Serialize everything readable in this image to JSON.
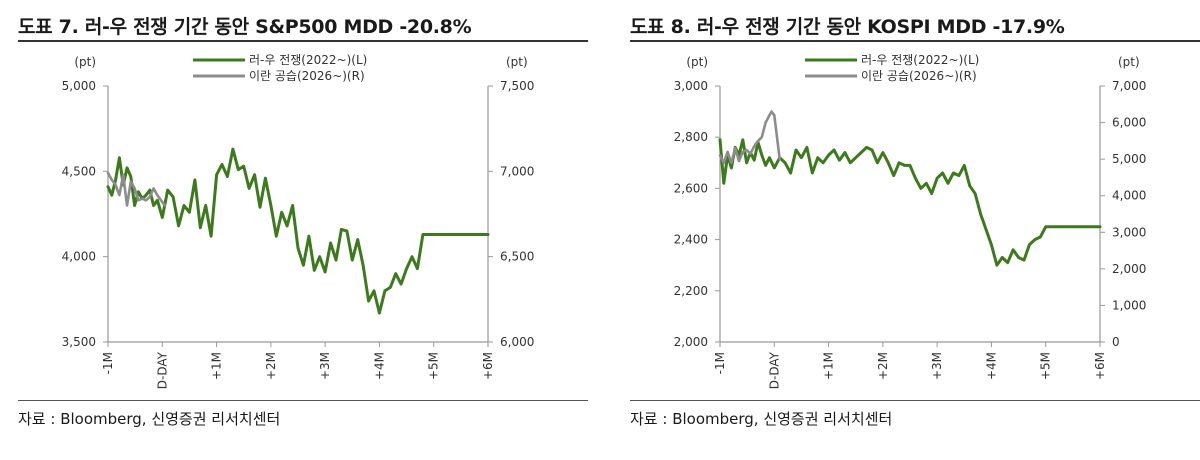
{
  "charts": [
    {
      "title": "도표 7. 러-우 전쟁 기간 동안 S&P500 MDD -20.8%",
      "source": "자료 : Bloomberg, 신영증권 리서치센터",
      "chart_data": {
        "type": "line",
        "title": "도표 7. 러-우 전쟁 기간 동안 S&P500 MDD -20.8%",
        "x_ticks": [
          "-1M",
          "D-DAY",
          "+1M",
          "+2M",
          "+3M",
          "+4M",
          "+5M",
          "+6M"
        ],
        "left_axis": {
          "unit": "(pt)",
          "ylim": [
            3500,
            5000
          ],
          "ticks": [
            3500,
            4000,
            4500,
            5000
          ],
          "tick_labels": [
            "3,500",
            "4,000",
            "4,500",
            "5,000"
          ]
        },
        "right_axis": {
          "unit": "(pt)",
          "ylim": [
            6000,
            7500
          ],
          "ticks": [
            6000,
            6500,
            7000,
            7500
          ],
          "tick_labels": [
            "6,000",
            "6,500",
            "7,000",
            "7,500"
          ]
        },
        "legend_position": "top-center",
        "series": [
          {
            "name": "러-우 전쟁(2022~)(L)",
            "axis": "left",
            "color": "#3d7a1e",
            "x": [
              -1.0,
              -0.93,
              -0.86,
              -0.79,
              -0.72,
              -0.65,
              -0.58,
              -0.51,
              -0.44,
              -0.37,
              -0.3,
              -0.23,
              -0.16,
              -0.09,
              0.0,
              0.1,
              0.2,
              0.3,
              0.4,
              0.5,
              0.6,
              0.7,
              0.8,
              0.9,
              1.0,
              1.1,
              1.2,
              1.3,
              1.4,
              1.5,
              1.6,
              1.7,
              1.8,
              1.9,
              2.0,
              2.1,
              2.2,
              2.3,
              2.4,
              2.5,
              2.6,
              2.7,
              2.8,
              2.9,
              3.0,
              3.1,
              3.2,
              3.3,
              3.4,
              3.5,
              3.6,
              3.7,
              3.8,
              3.9,
              4.0,
              4.1,
              4.2,
              4.3,
              4.4,
              4.5,
              4.6,
              4.7,
              4.8,
              4.9,
              5.0,
              5.1,
              5.2,
              5.3,
              5.4,
              5.5,
              5.6,
              5.7,
              5.8,
              5.9,
              6.0
            ],
            "values": [
              4410,
              4360,
              4450,
              4580,
              4420,
              4520,
              4470,
              4300,
              4380,
              4340,
              4360,
              4390,
              4300,
              4330,
              4230,
              4390,
              4350,
              4180,
              4300,
              4260,
              4450,
              4170,
              4300,
              4120,
              4480,
              4540,
              4470,
              4630,
              4510,
              4530,
              4400,
              4480,
              4290,
              4460,
              4300,
              4120,
              4260,
              4180,
              4300,
              4050,
              3950,
              4120,
              3920,
              4000,
              3910,
              4080,
              3980,
              4160,
              4150,
              3980,
              4100,
              3950,
              3740,
              3800,
              3670,
              3800,
              3820,
              3900,
              3840,
              3930,
              4000,
              3930,
              4130,
              4130,
              4130,
              4130,
              4130,
              4130,
              4130,
              4130,
              4130,
              4130,
              4130,
              4130,
              4130
            ]
          },
          {
            "name": "이란 공습(2026~)(R)",
            "axis": "right",
            "color": "#8c8c8c",
            "x": [
              -1.0,
              -0.93,
              -0.86,
              -0.79,
              -0.72,
              -0.65,
              -0.58,
              -0.51,
              -0.44,
              -0.37,
              -0.3,
              -0.23,
              -0.16,
              -0.09,
              0.0,
              0.05
            ],
            "values": [
              6990,
              6950,
              6920,
              6860,
              6980,
              6800,
              6940,
              6900,
              6830,
              6840,
              6830,
              6850,
              6900,
              6860,
              6820,
              6800
            ]
          }
        ]
      }
    },
    {
      "title": "도표 8. 러-우 전쟁 기간 동안 KOSPI MDD -17.9%",
      "source": "자료 : Bloomberg, 신영증권 리서치센터",
      "chart_data": {
        "type": "line",
        "title": "도표 8. 러-우 전쟁 기간 동안 KOSPI MDD -17.9%",
        "x_ticks": [
          "-1M",
          "D-DAY",
          "+1M",
          "+2M",
          "+3M",
          "+4M",
          "+5M",
          "+6M"
        ],
        "left_axis": {
          "unit": "(pt)",
          "ylim": [
            2000,
            3000
          ],
          "ticks": [
            2000,
            2200,
            2400,
            2600,
            2800,
            3000
          ],
          "tick_labels": [
            "2,000",
            "2,200",
            "2,400",
            "2,600",
            "2,800",
            "3,000"
          ]
        },
        "right_axis": {
          "unit": "(pt)",
          "ylim": [
            0,
            7000
          ],
          "ticks": [
            0,
            1000,
            2000,
            3000,
            4000,
            5000,
            6000,
            7000
          ],
          "tick_labels": [
            "0",
            "1,000",
            "2,000",
            "3,000",
            "4,000",
            "5,000",
            "6,000",
            "7,000"
          ]
        },
        "legend_position": "top-center",
        "series": [
          {
            "name": "러-우 전쟁(2022~)(L)",
            "axis": "left",
            "color": "#3d7a1e",
            "x": [
              -1.0,
              -0.93,
              -0.86,
              -0.79,
              -0.72,
              -0.65,
              -0.58,
              -0.51,
              -0.44,
              -0.37,
              -0.3,
              -0.23,
              -0.16,
              -0.09,
              0.0,
              0.1,
              0.2,
              0.3,
              0.4,
              0.5,
              0.6,
              0.7,
              0.8,
              0.9,
              1.0,
              1.1,
              1.2,
              1.3,
              1.4,
              1.5,
              1.6,
              1.7,
              1.8,
              1.9,
              2.0,
              2.1,
              2.2,
              2.3,
              2.4,
              2.5,
              2.6,
              2.7,
              2.8,
              2.9,
              3.0,
              3.1,
              3.2,
              3.3,
              3.4,
              3.5,
              3.6,
              3.7,
              3.8,
              3.9,
              4.0,
              4.1,
              4.2,
              4.3,
              4.4,
              4.5,
              4.6,
              4.7,
              4.8,
              4.9,
              5.0,
              5.1,
              5.2,
              5.3,
              5.4,
              5.5,
              5.6,
              5.7,
              5.8,
              5.9,
              6.0
            ],
            "values": [
              2790,
              2620,
              2730,
              2680,
              2760,
              2730,
              2790,
              2700,
              2740,
              2710,
              2780,
              2730,
              2690,
              2720,
              2680,
              2720,
              2700,
              2660,
              2750,
              2720,
              2760,
              2660,
              2720,
              2700,
              2730,
              2750,
              2710,
              2740,
              2700,
              2720,
              2740,
              2760,
              2750,
              2700,
              2740,
              2700,
              2650,
              2700,
              2690,
              2690,
              2640,
              2600,
              2620,
              2580,
              2640,
              2660,
              2620,
              2660,
              2650,
              2690,
              2610,
              2580,
              2500,
              2440,
              2380,
              2300,
              2330,
              2310,
              2360,
              2330,
              2320,
              2380,
              2400,
              2410,
              2450,
              2450,
              2450,
              2450,
              2450,
              2450,
              2450,
              2450,
              2450,
              2450,
              2450
            ]
          },
          {
            "name": "이란 공습(2026~)(R)",
            "axis": "right",
            "color": "#8c8c8c",
            "x": [
              -1.0,
              -0.93,
              -0.86,
              -0.79,
              -0.72,
              -0.65,
              -0.58,
              -0.51,
              -0.44,
              -0.37,
              -0.3,
              -0.23,
              -0.16,
              -0.09,
              -0.05,
              0.0,
              0.1
            ],
            "values": [
              5100,
              4900,
              5200,
              4900,
              5300,
              4950,
              5200,
              5250,
              5150,
              5350,
              5500,
              5600,
              6000,
              6200,
              6300,
              6200,
              5000
            ]
          }
        ]
      }
    }
  ]
}
